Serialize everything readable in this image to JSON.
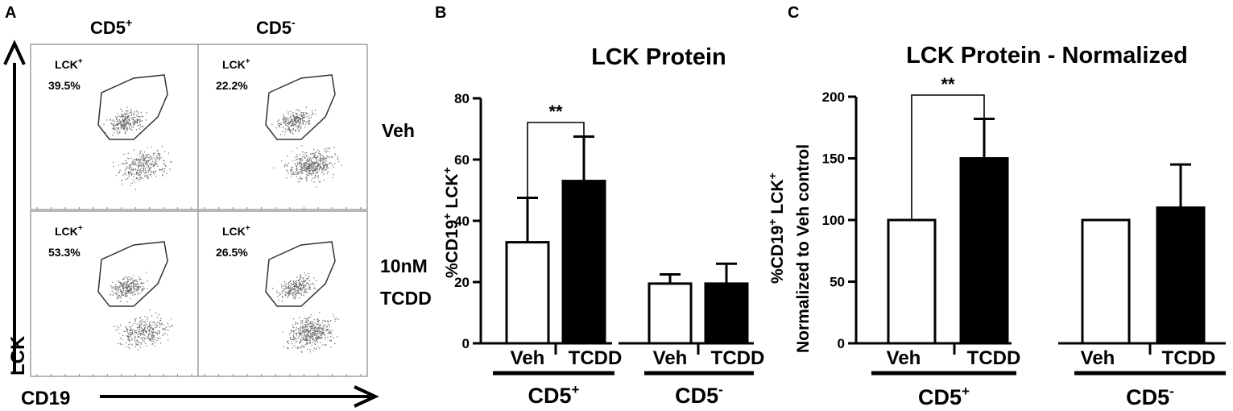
{
  "panelA": {
    "letter": "A",
    "col_headers": [
      {
        "base": "CD5",
        "sup": "+"
      },
      {
        "base": "CD5",
        "sup": "-"
      }
    ],
    "row_headers": [
      {
        "lines": [
          "Veh"
        ]
      },
      {
        "lines": [
          "10nM",
          "TCDD"
        ]
      }
    ],
    "gates": [
      {
        "name_base": "LCK",
        "name_sup": "+",
        "pct": "39.5%"
      },
      {
        "name_base": "LCK",
        "name_sup": "+",
        "pct": "22.2%"
      },
      {
        "name_base": "LCK",
        "name_sup": "+",
        "pct": "53.3%"
      },
      {
        "name_base": "LCK",
        "name_sup": "+",
        "pct": "26.5%"
      }
    ],
    "y_axis": "LCK",
    "x_axis": "CD19"
  },
  "chart_data": [
    {
      "type": "bar",
      "panel": "B",
      "title": "LCK Protein",
      "ylabel_parts": [
        {
          "t": "%CD19",
          "sup": false
        },
        {
          "t": "+",
          "sup": true
        },
        {
          "t": " LCK",
          "sup": false
        },
        {
          "t": "+",
          "sup": true
        }
      ],
      "ylim": [
        0,
        80
      ],
      "yticks": [
        0,
        20,
        40,
        60,
        80
      ],
      "categories": [
        "Veh",
        "TCDD",
        "Veh",
        "TCDD"
      ],
      "values": [
        33,
        53,
        19.5,
        19.5
      ],
      "errors": [
        14.5,
        14.5,
        3,
        6.5
      ],
      "fills": [
        "#ffffff",
        "#000000",
        "#ffffff",
        "#000000"
      ],
      "groups": [
        {
          "base": "CD5",
          "sup": "+"
        },
        {
          "base": "CD5",
          "sup": "-"
        }
      ],
      "significance": [
        {
          "from": 0,
          "to": 1,
          "label": "**"
        }
      ]
    },
    {
      "type": "bar",
      "panel": "C",
      "title": "LCK Protein - Normalized",
      "ylabel_line1_parts": [
        {
          "t": "%CD19",
          "sup": false
        },
        {
          "t": "+",
          "sup": true
        },
        {
          "t": " LCK",
          "sup": false
        },
        {
          "t": "+",
          "sup": true
        }
      ],
      "ylabel_line2": "Normalized to Veh control",
      "ylim": [
        0,
        200
      ],
      "yticks": [
        0,
        50,
        100,
        150,
        200
      ],
      "categories": [
        "Veh",
        "TCDD",
        "Veh",
        "TCDD"
      ],
      "values": [
        100,
        150,
        100,
        110
      ],
      "errors": [
        0,
        32,
        0,
        35
      ],
      "fills": [
        "#ffffff",
        "#000000",
        "#ffffff",
        "#000000"
      ],
      "groups": [
        {
          "base": "CD5",
          "sup": "+"
        },
        {
          "base": "CD5",
          "sup": "-"
        }
      ],
      "significance": [
        {
          "from": 0,
          "to": 1,
          "label": "**"
        }
      ]
    }
  ]
}
